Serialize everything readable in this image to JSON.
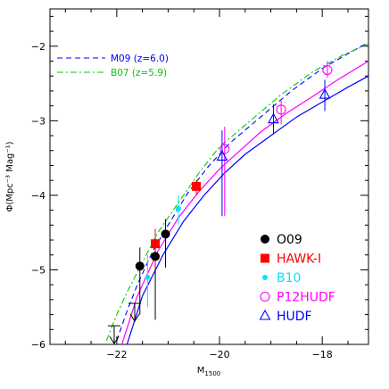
{
  "chart_data": {
    "type": "scatter",
    "xlabel": "M",
    "xlabel_sub": "1500",
    "ylabel": "Φ(Mpc⁻³ Mag⁻¹)",
    "xlim": [
      -23.3,
      -17.1
    ],
    "ylim": [
      -6,
      -1.5
    ],
    "x_ticks": [
      -22,
      -20,
      -18
    ],
    "y_ticks": [
      -6,
      -5,
      -4,
      -3,
      -2
    ],
    "x_minor_step": 0.5,
    "y_minor_step": 0.2,
    "model_curves": [
      {
        "name": "M09 (z=6.0)",
        "color": "#0000ff",
        "style": "dashed",
        "x": [
          -22.0,
          -21.8,
          -21.6,
          -21.3,
          -21.0,
          -20.6,
          -20.2,
          -19.8,
          -19.2,
          -18.6,
          -18.0,
          -17.5,
          -17.1
        ],
        "y": [
          -5.95,
          -5.55,
          -5.2,
          -4.75,
          -4.4,
          -3.95,
          -3.6,
          -3.3,
          -2.95,
          -2.6,
          -2.3,
          -2.1,
          -1.95
        ]
      },
      {
        "name": "B07 (z=5.9)",
        "color": "#00cc00",
        "style": "dashdot",
        "x": [
          -22.2,
          -22.0,
          -21.8,
          -21.5,
          -21.2,
          -20.8,
          -20.4,
          -20.0,
          -19.4,
          -18.8,
          -18.2,
          -17.6,
          -17.1
        ],
        "y": [
          -5.95,
          -5.6,
          -5.3,
          -4.9,
          -4.5,
          -4.1,
          -3.7,
          -3.35,
          -3.0,
          -2.65,
          -2.35,
          -2.12,
          -1.97
        ]
      }
    ],
    "fit_curves": [
      {
        "color": "#ff00ff",
        "x": [
          -21.9,
          -21.6,
          -21.2,
          -20.8,
          -20.4,
          -20.0,
          -19.6,
          -19.2,
          -18.7,
          -18.2,
          -17.7,
          -17.1
        ],
        "y": [
          -6.0,
          -5.35,
          -4.75,
          -4.3,
          -3.95,
          -3.65,
          -3.4,
          -3.15,
          -2.9,
          -2.68,
          -2.45,
          -2.2
        ]
      },
      {
        "color": "#0000ff",
        "x": [
          -21.8,
          -21.5,
          -21.1,
          -20.7,
          -20.3,
          -19.9,
          -19.5,
          -19.0,
          -18.5,
          -18.0,
          -17.5,
          -17.1
        ],
        "y": [
          -6.0,
          -5.35,
          -4.8,
          -4.35,
          -4.0,
          -3.7,
          -3.45,
          -3.2,
          -2.95,
          -2.75,
          -2.55,
          -2.4
        ]
      }
    ],
    "series": [
      {
        "name": "O09",
        "color": "#000000",
        "marker": "circle-filled",
        "points": [
          {
            "x": -21.55,
            "y": -4.95,
            "err_lo": 0.65,
            "err_hi": 0.25
          },
          {
            "x": -21.25,
            "y": -4.82,
            "err_lo": 0.85,
            "err_hi": 0.25
          },
          {
            "x": -21.05,
            "y": -4.52,
            "err_lo": 0.45,
            "err_hi": 0.2
          }
        ]
      },
      {
        "name": "HAWK-I",
        "color": "#ff0000",
        "marker": "square-filled",
        "points": [
          {
            "x": -21.25,
            "y": -4.65,
            "err_lo": 0.35,
            "err_hi": 0.2
          },
          {
            "x": -20.45,
            "y": -3.88,
            "err_lo": 0.12,
            "err_hi": 0.08
          }
        ]
      },
      {
        "name": "B10",
        "color": "#00e5ff",
        "marker": "dot-small",
        "points": [
          {
            "x": -21.4,
            "y": -5.1,
            "err_lo": 0.4,
            "err_hi": 0.3
          },
          {
            "x": -20.8,
            "y": -4.18,
            "err_lo": 0.22,
            "err_hi": 0.18
          }
        ]
      },
      {
        "name": "P12HUDF",
        "color": "#ff00ff",
        "marker": "circle-open",
        "points": [
          {
            "x": -19.9,
            "y": -3.38,
            "err_lo": 0.9,
            "err_hi": 0.3
          },
          {
            "x": -18.8,
            "y": -2.85,
            "err_lo": 0.2,
            "err_hi": 0.12
          },
          {
            "x": -17.9,
            "y": -2.32,
            "err_lo": 0.1,
            "err_hi": 0.12
          }
        ]
      },
      {
        "name": "HUDF",
        "color": "#0000ff",
        "marker": "triangle-open",
        "points": [
          {
            "x": -19.95,
            "y": -3.48,
            "err_lo": 0.8,
            "err_hi": 0.35
          },
          {
            "x": -18.95,
            "y": -2.98,
            "err_lo": 0.2,
            "err_hi": 0.2
          },
          {
            "x": -17.95,
            "y": -2.65,
            "err_lo": 0.22,
            "err_hi": 0.2
          }
        ]
      }
    ],
    "upper_limits": [
      {
        "x": -22.05,
        "y": -5.75,
        "color": "#000000"
      },
      {
        "x": -21.65,
        "y": -5.45,
        "color": "#000000"
      }
    ]
  }
}
